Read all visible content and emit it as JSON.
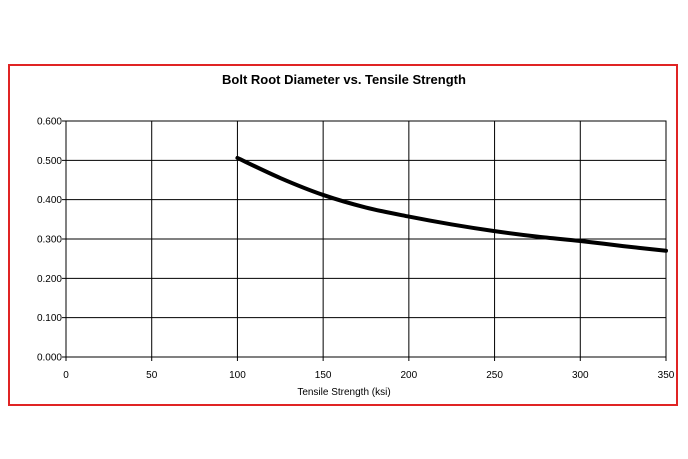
{
  "chart_data": {
    "type": "line",
    "title": "Bolt Root Diameter vs. Tensile Strength",
    "xlabel": "Tensile Strength (ksi)",
    "ylabel": "",
    "xlim": [
      0,
      350
    ],
    "ylim": [
      0,
      0.6
    ],
    "x_ticks": [
      "0",
      "50",
      "100",
      "150",
      "200",
      "250",
      "300",
      "350"
    ],
    "y_ticks": [
      "0.000",
      "0.100",
      "0.200",
      "0.300",
      "0.400",
      "0.500",
      "0.600"
    ],
    "grid": true,
    "series": [
      {
        "x": [
          100,
          125,
          150,
          175,
          200,
          225,
          250,
          275,
          300,
          325,
          350
        ],
        "values": [
          0.506,
          0.455,
          0.412,
          0.38,
          0.357,
          0.337,
          0.32,
          0.306,
          0.295,
          0.282,
          0.27
        ]
      }
    ],
    "colors": {
      "line": "#000000",
      "grid": "#000000",
      "border": "#e02424"
    }
  }
}
